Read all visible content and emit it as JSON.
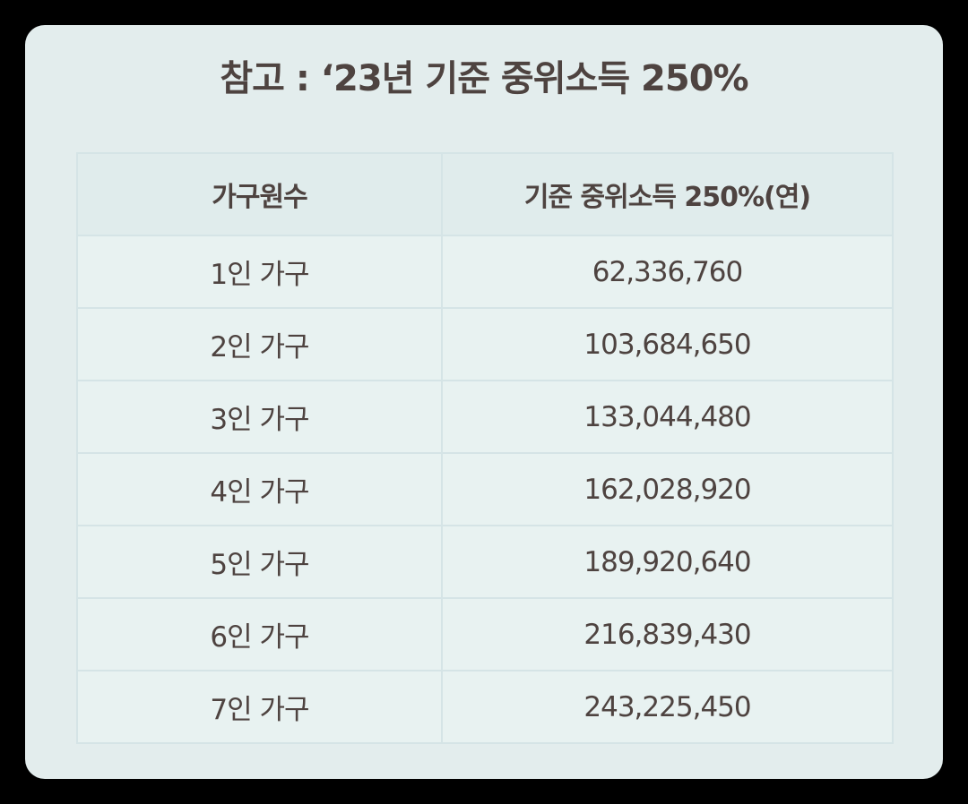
{
  "title": "참고 : ‘23년 기준 중위소득 250%",
  "table": {
    "headers": [
      "가구원수",
      "기준 중위소득 250%(연)"
    ],
    "rows": [
      [
        "1인 가구",
        "62,336,760"
      ],
      [
        "2인 가구",
        "103,684,650"
      ],
      [
        "3인 가구",
        "133,044,480"
      ],
      [
        "4인 가구",
        "162,028,920"
      ],
      [
        "5인 가구",
        "189,920,640"
      ],
      [
        "6인 가구",
        "216,839,430"
      ],
      [
        "7인 가구",
        "243,225,450"
      ]
    ]
  },
  "colors": {
    "frame": "#000000",
    "card_background": "#e3eded",
    "header_background": "#e0ecec",
    "cell_background": "#e8f2f1",
    "border": "#d5e4e6",
    "text": "#4e4340"
  }
}
